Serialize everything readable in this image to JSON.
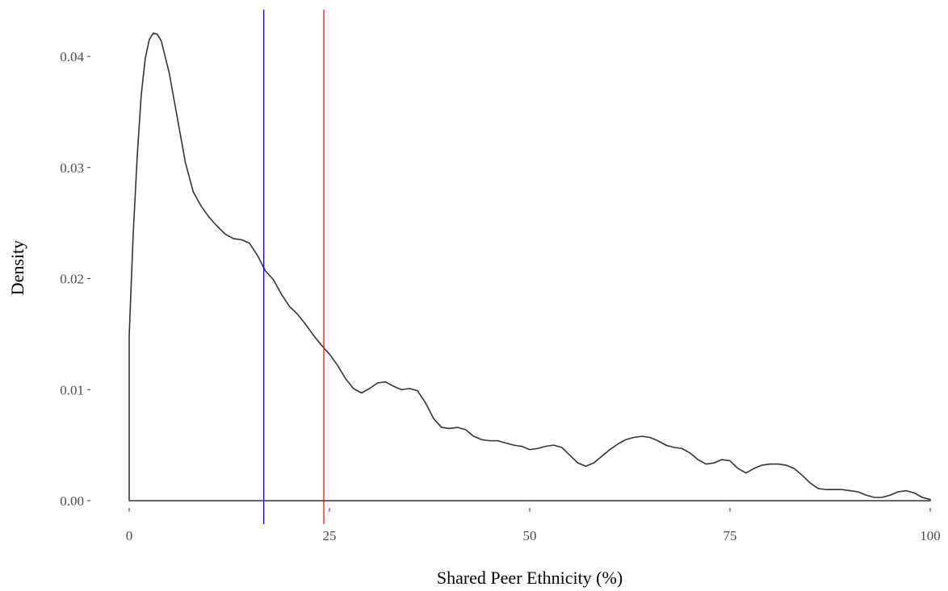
{
  "chart_data": {
    "type": "area",
    "title": "",
    "xlabel": "Shared Peer Ethnicity (%)",
    "ylabel": "Density",
    "xlim": [
      0,
      100
    ],
    "ylim": [
      0,
      0.04
    ],
    "x_ticks": [
      0,
      25,
      50,
      75,
      100
    ],
    "x_tick_labels": [
      "0",
      "25",
      "50",
      "75",
      "100"
    ],
    "y_ticks": [
      0,
      0.01,
      0.02,
      0.03,
      0.04
    ],
    "y_tick_labels": [
      "0.00",
      "0.01",
      "0.02",
      "0.03",
      "0.04"
    ],
    "grid": false,
    "legend": "none",
    "series": [
      {
        "color": "#333333",
        "x": [
          0,
          0.5,
          1,
          1.5,
          2,
          2.5,
          3,
          3.5,
          4,
          5,
          6,
          7,
          8,
          9,
          10,
          11,
          12,
          13,
          14,
          15,
          16,
          17,
          18,
          19,
          20,
          21,
          22,
          23,
          24,
          25,
          26,
          27,
          28,
          29,
          30,
          31,
          32,
          33,
          34,
          35,
          36,
          37,
          38,
          39,
          40,
          41,
          42,
          43,
          44,
          45,
          46,
          47,
          48,
          49,
          50,
          51,
          52,
          53,
          54,
          55,
          56,
          57,
          58,
          59,
          60,
          61,
          62,
          63,
          64,
          65,
          66,
          67,
          68,
          69,
          70,
          71,
          72,
          73,
          74,
          75,
          76,
          77,
          78,
          79,
          80,
          81,
          82,
          83,
          84,
          85,
          86,
          87,
          88,
          89,
          90,
          91,
          92,
          93,
          94,
          95,
          96,
          97,
          98,
          99,
          100
        ],
        "y": [
          0.0149,
          0.024,
          0.031,
          0.0365,
          0.0398,
          0.0415,
          0.0421,
          0.042,
          0.0414,
          0.0385,
          0.0345,
          0.0305,
          0.0278,
          0.0265,
          0.0255,
          0.0247,
          0.024,
          0.0236,
          0.0235,
          0.0232,
          0.0221,
          0.0207,
          0.0199,
          0.0186,
          0.0175,
          0.0168,
          0.0159,
          0.0149,
          0.014,
          0.0132,
          0.0122,
          0.011,
          0.0101,
          0.0097,
          0.0101,
          0.0106,
          0.0107,
          0.0103,
          0.01,
          0.0101,
          0.0099,
          0.0088,
          0.0074,
          0.0066,
          0.0065,
          0.0066,
          0.0064,
          0.0058,
          0.0055,
          0.0054,
          0.0054,
          0.0052,
          0.005,
          0.0049,
          0.0046,
          0.0047,
          0.0049,
          0.005,
          0.0048,
          0.0041,
          0.0034,
          0.0031,
          0.0034,
          0.004,
          0.0046,
          0.0051,
          0.0055,
          0.0057,
          0.0058,
          0.0057,
          0.0054,
          0.005,
          0.0048,
          0.0047,
          0.0043,
          0.0037,
          0.0033,
          0.0034,
          0.0037,
          0.0036,
          0.0029,
          0.0025,
          0.0029,
          0.0032,
          0.0033,
          0.0033,
          0.0032,
          0.0029,
          0.0023,
          0.0016,
          0.0011,
          0.001,
          0.001,
          0.001,
          0.0009,
          0.0008,
          0.0005,
          0.0003,
          0.0003,
          0.0005,
          0.0008,
          0.0009,
          0.0007,
          0.0003,
          0.0001
        ]
      }
    ],
    "vlines": [
      {
        "x": 16.8,
        "color": "#0000cc"
      },
      {
        "x": 24.3,
        "color": "#ee1111"
      }
    ]
  }
}
